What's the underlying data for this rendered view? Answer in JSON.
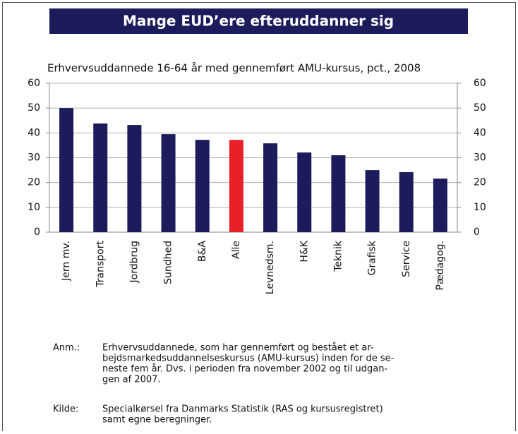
{
  "chart_data": {
    "type": "bar",
    "title": "Mange EUD’ere efteruddanner sig",
    "subtitle": "Erhvervsuddannede 16-64 år med gennemført AMU-kursus, pct., 2008",
    "categories": [
      "Jern mv.",
      "Transport",
      "Jordbrug",
      "Sundhed",
      "B&A",
      "Alle",
      "Levnedsm.",
      "H&K",
      "Teknik",
      "Grafisk",
      "Service",
      "Pædagog."
    ],
    "values": [
      50.0,
      43.8,
      43.2,
      39.5,
      37.2,
      37.2,
      35.8,
      32.1,
      31.0,
      25.0,
      24.2,
      21.6
    ],
    "colors": [
      "#1c1c5c",
      "#1c1c5c",
      "#1c1c5c",
      "#1c1c5c",
      "#1c1c5c",
      "#e8202a",
      "#1c1c5c",
      "#1c1c5c",
      "#1c1c5c",
      "#1c1c5c",
      "#1c1c5c",
      "#1c1c5c"
    ],
    "ylim": [
      0,
      60
    ],
    "yticks": [
      0,
      10,
      20,
      30,
      40,
      50,
      60
    ],
    "y2lim": [
      0,
      60
    ],
    "y2ticks": [
      0,
      10,
      20,
      30,
      40,
      50,
      60
    ],
    "grid": true,
    "notes": [
      {
        "label": "Anm.:",
        "lines": [
          "Erhvervsuddannede, som har gennemført og bestået et ar-",
          "bejdsmarkedsuddannelseskursus (AMU-kursus) inden for de se-",
          "neste fem år. Dvs. i perioden fra november 2002 og til udgan-",
          "gen af 2007."
        ]
      },
      {
        "label": "Kilde:",
        "lines": [
          "Specialkørsel fra Danmarks Statistik (RAS og kursusregistret)",
          "samt egne beregninger."
        ]
      }
    ]
  }
}
